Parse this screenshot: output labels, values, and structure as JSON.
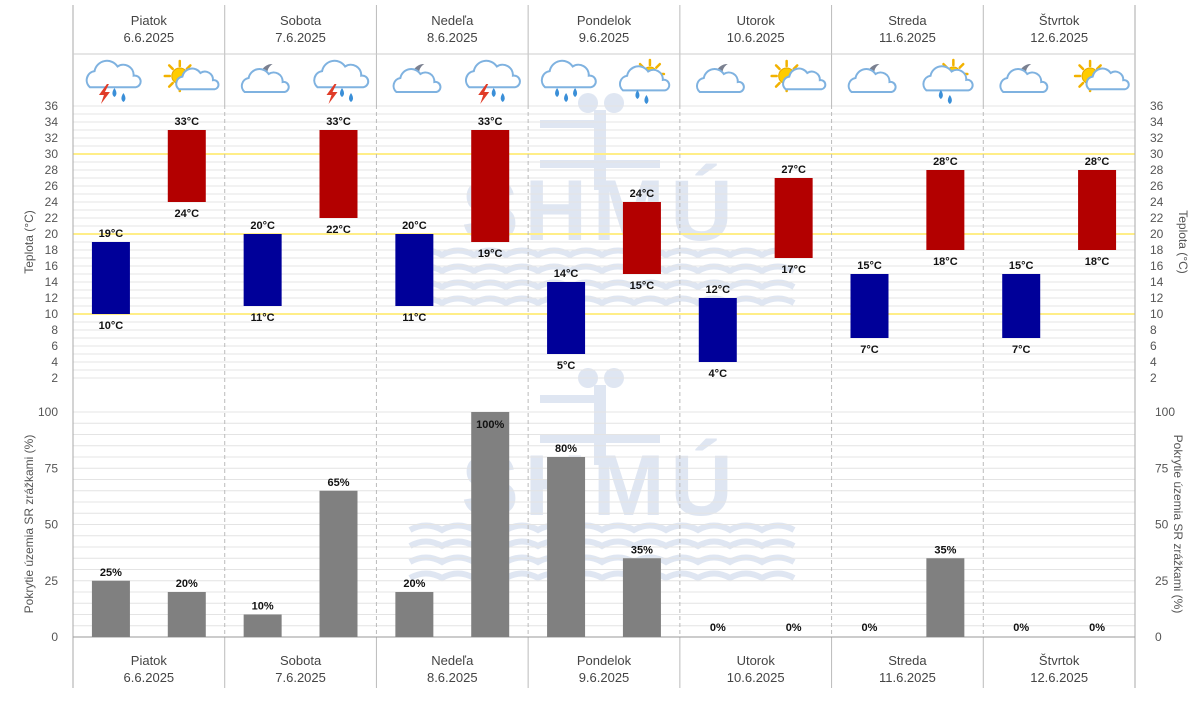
{
  "days": [
    {
      "name": "Piatok",
      "date": "6.6.2025",
      "icons": [
        "storm-rain-icon",
        "sun-cloud-icon"
      ]
    },
    {
      "name": "Sobota",
      "date": "7.6.2025",
      "icons": [
        "moon-cloud-icon",
        "storm-rain-icon"
      ]
    },
    {
      "name": "Nedeľa",
      "date": "8.6.2025",
      "icons": [
        "moon-cloud-icon",
        "storm-rain-icon"
      ]
    },
    {
      "name": "Pondelok",
      "date": "9.6.2025",
      "icons": [
        "rain-cloud-icon",
        "sun-cloud-drizzle-icon"
      ]
    },
    {
      "name": "Utorok",
      "date": "10.6.2025",
      "icons": [
        "moon-cloud-icon",
        "sun-cloud-icon"
      ]
    },
    {
      "name": "Streda",
      "date": "11.6.2025",
      "icons": [
        "moon-cloud-icon",
        "sun-cloud-drizzle-icon"
      ]
    },
    {
      "name": "Štvrtok",
      "date": "12.6.2025",
      "icons": [
        "moon-cloud-icon",
        "sun-cloud-icon"
      ]
    }
  ],
  "colors": {
    "night_bar": "#000099",
    "day_bar": "#b30000",
    "precip_bar": "#808080",
    "threshold_line": "#ffee88",
    "grid": "#e4e4e4",
    "watermark": "#dfe6f2"
  },
  "watermark_text": "SHMÚ",
  "chart_data": [
    {
      "type": "bar",
      "subtype": "floating-range",
      "ylabel": "Teplota (°C)",
      "ylabel_right": "Teplota (°C)",
      "ylim": [
        2,
        36
      ],
      "yticks": [
        2,
        4,
        6,
        8,
        10,
        12,
        14,
        16,
        18,
        20,
        22,
        24,
        26,
        28,
        30,
        32,
        34,
        36
      ],
      "unit": "°C",
      "reference_lines": [
        10,
        20,
        30
      ],
      "night": [
        {
          "low": 10,
          "high": 19
        },
        {
          "low": 11,
          "high": 20
        },
        {
          "low": 11,
          "high": 20
        },
        {
          "low": 5,
          "high": 14
        },
        {
          "low": 4,
          "high": 12
        },
        {
          "low": 7,
          "high": 15
        },
        {
          "low": 7,
          "high": 15
        }
      ],
      "day": [
        {
          "low": 24,
          "high": 33
        },
        {
          "low": 22,
          "high": 33
        },
        {
          "low": 19,
          "high": 33
        },
        {
          "low": 15,
          "high": 24
        },
        {
          "low": 17,
          "high": 27
        },
        {
          "low": 18,
          "high": 28
        },
        {
          "low": 18,
          "high": 28
        }
      ]
    },
    {
      "type": "bar",
      "ylabel": "Pokrytie územia SR zrážkami (%)",
      "ylabel_right": "Pokrytie územia SR zrážkami (%)",
      "ylim": [
        0,
        100
      ],
      "yticks": [
        0,
        25,
        50,
        75,
        100
      ],
      "unit": "%",
      "values": [
        [
          25,
          20
        ],
        [
          10,
          65
        ],
        [
          20,
          100
        ],
        [
          80,
          35
        ],
        [
          0,
          0
        ],
        [
          0,
          35
        ],
        [
          0,
          0
        ]
      ]
    }
  ]
}
